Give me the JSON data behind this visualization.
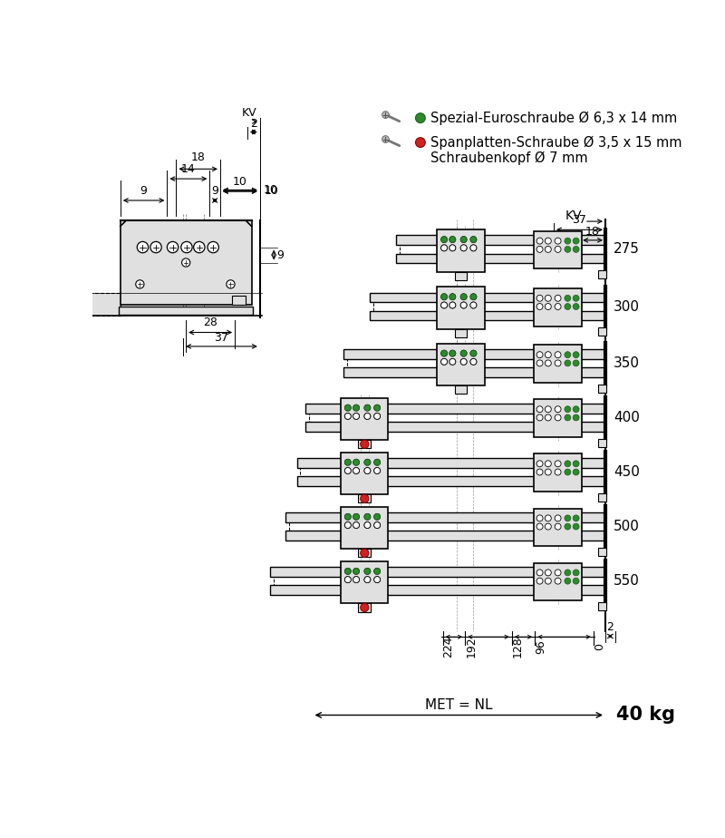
{
  "bg_color": "#ffffff",
  "line_color": "#000000",
  "dark_gray": "#555555",
  "gray_fill": "#cccccc",
  "light_gray": "#e0e0e0",
  "green_color": "#2d8a2d",
  "red_color": "#cc2222",
  "legend_line1": "Spezial-Euroschraube Ø 6,3 x 14 mm",
  "legend_line2": "Spanplatten-Schraube Ø 3,5 x 15 mm",
  "legend_line3": "Schraubenkopf Ø 7 mm",
  "drawer_heights": [
    275,
    300,
    350,
    400,
    450,
    500,
    550
  ],
  "met_label": "MET = NL",
  "kg_label": "40 kg",
  "font_size_dim": 9,
  "font_size_label": 11,
  "font_size_kg": 15
}
